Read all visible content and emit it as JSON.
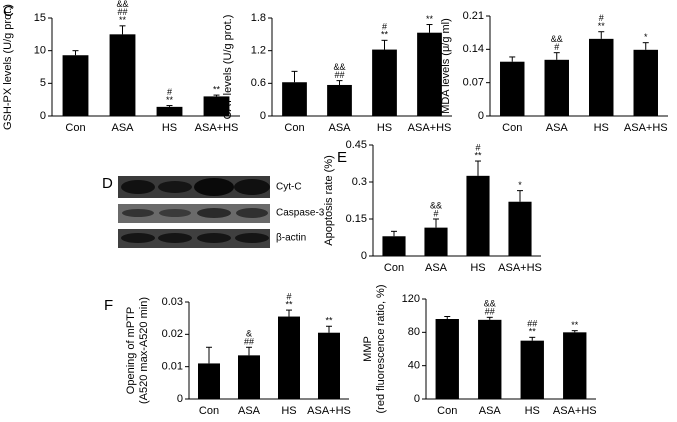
{
  "panel_labels": [
    "C",
    "D",
    "E",
    "F"
  ],
  "blot": {
    "labels": [
      "Cyt-C",
      "Caspase-3",
      "β-actin"
    ]
  },
  "chart_data": [
    {
      "type": "bar",
      "ylabel": [
        "GSH-PX levels (U/g prot.)"
      ],
      "categories": [
        "Con",
        "ASA",
        "HS",
        "ASA+HS"
      ],
      "values": [
        9.3,
        12.5,
        1.4,
        3.0
      ],
      "errors": [
        0.7,
        1.3,
        0.2,
        0.2
      ],
      "annotations": [
        [],
        [
          "&&",
          "##",
          "**"
        ],
        [
          "#",
          "**"
        ],
        [
          "**"
        ]
      ],
      "ylim": [
        0,
        15
      ],
      "yticks": [
        0,
        5,
        10,
        15
      ],
      "color": "#000000"
    },
    {
      "type": "bar",
      "ylabel": [
        "CAT levels (U/g prot.)"
      ],
      "categories": [
        "Con",
        "ASA",
        "HS",
        "ASA+HS"
      ],
      "values": [
        0.62,
        0.57,
        1.22,
        1.53
      ],
      "errors": [
        0.2,
        0.08,
        0.17,
        0.15
      ],
      "annotations": [
        [],
        [
          "&&",
          "##"
        ],
        [
          "#",
          "**"
        ],
        [
          "**"
        ]
      ],
      "ylim": [
        0,
        1.8
      ],
      "yticks": [
        0,
        0.6,
        1.2,
        1.8
      ],
      "color": "#000000"
    },
    {
      "type": "bar",
      "ylabel": [
        "MDA levels (μ/g ml)"
      ],
      "categories": [
        "Con",
        "ASA",
        "HS",
        "ASA+HS"
      ],
      "values": [
        0.114,
        0.118,
        0.162,
        0.139
      ],
      "errors": [
        0.01,
        0.015,
        0.015,
        0.015
      ],
      "annotations": [
        [],
        [
          "&&",
          "#"
        ],
        [
          "#",
          "**"
        ],
        [
          "*"
        ]
      ],
      "ylim": [
        0,
        0.21
      ],
      "yticks": [
        0,
        0.07,
        0.14,
        0.21
      ],
      "color": "#000000"
    },
    {
      "type": "bar",
      "ylabel": [
        "Apoptosis rate (%)"
      ],
      "categories": [
        "Con",
        "ASA",
        "HS",
        "ASA+HS"
      ],
      "values": [
        0.08,
        0.115,
        0.325,
        0.22
      ],
      "errors": [
        0.02,
        0.035,
        0.06,
        0.045
      ],
      "annotations": [
        [],
        [
          "&&",
          "#"
        ],
        [
          "#",
          "**"
        ],
        [
          "*"
        ]
      ],
      "ylim": [
        0,
        0.45
      ],
      "yticks": [
        0,
        0.15,
        0.3,
        0.45
      ],
      "color": "#000000"
    },
    {
      "type": "bar",
      "ylabel": [
        "Opening of mPTP",
        "(A520 max-A520 min)"
      ],
      "categories": [
        "Con",
        "ASA",
        "HS",
        "ASA+HS"
      ],
      "values": [
        0.011,
        0.0135,
        0.0255,
        0.0205
      ],
      "errors": [
        0.005,
        0.0025,
        0.002,
        0.002
      ],
      "annotations": [
        [],
        [
          "&",
          "##"
        ],
        [
          "#",
          "**"
        ],
        [
          "**"
        ]
      ],
      "ylim": [
        0,
        0.03
      ],
      "yticks": [
        0,
        0.01,
        0.02,
        0.03
      ],
      "color": "#000000"
    },
    {
      "type": "bar",
      "ylabel": [
        "MMP",
        "(red fluorescence ratio, %)"
      ],
      "categories": [
        "Con",
        "ASA",
        "HS",
        "ASA+HS"
      ],
      "values": [
        96,
        95,
        70,
        80
      ],
      "errors": [
        3,
        3,
        4,
        2
      ],
      "annotations": [
        [],
        [
          "&&",
          "##"
        ],
        [
          "##",
          "**"
        ],
        [
          "**"
        ]
      ],
      "ylim": [
        0,
        120
      ],
      "yticks": [
        0,
        40,
        80,
        120
      ],
      "color": "#000000"
    }
  ]
}
